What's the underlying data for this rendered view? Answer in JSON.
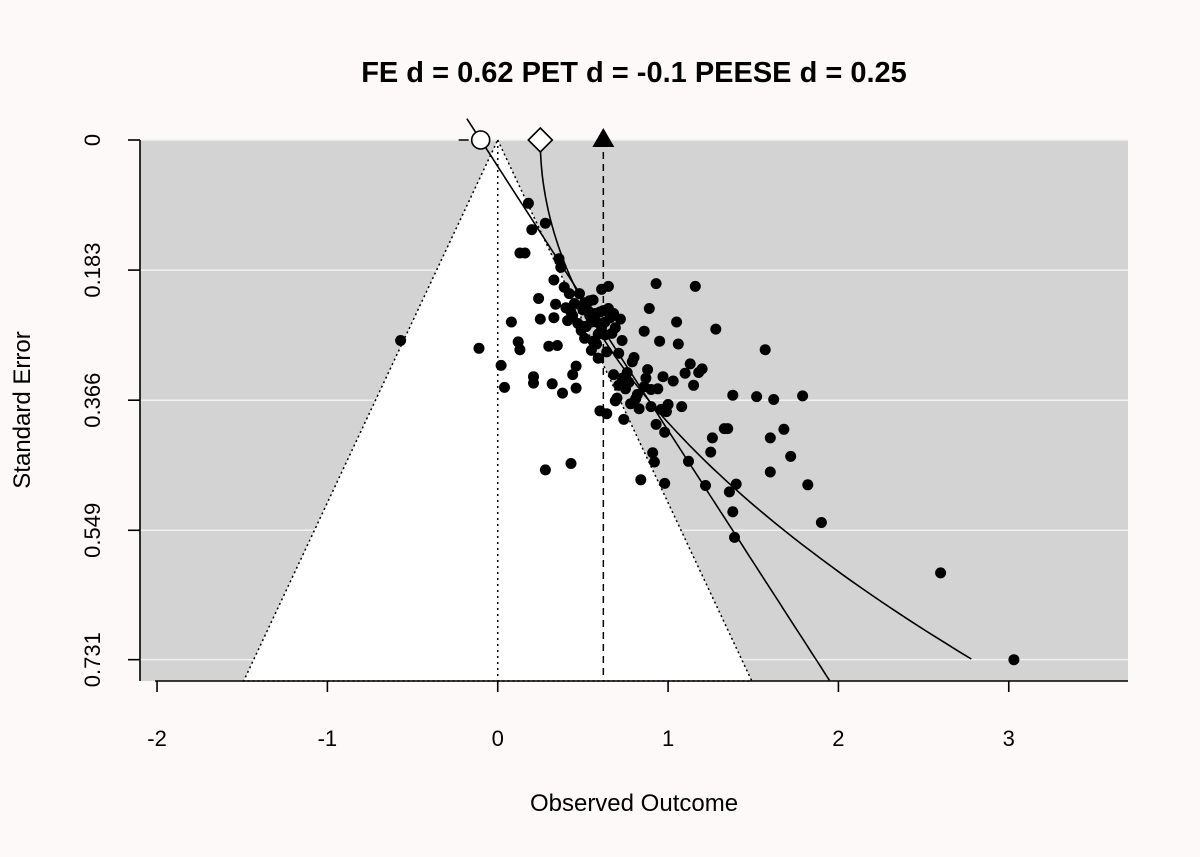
{
  "chart_data": {
    "type": "scatter",
    "title": "FE d = 0.62 PET d = -0.1 PEESE d = 0.25",
    "xlabel": "Observed Outcome",
    "ylabel": "Standard Error",
    "xlim": [
      -2.1,
      3.7
    ],
    "ylim": [
      0.761,
      0
    ],
    "x_ticks": [
      "-2",
      "-1",
      "0",
      "1",
      "2",
      "3"
    ],
    "x_tick_values": [
      -2,
      -1,
      0,
      1,
      2,
      3
    ],
    "y_ticks": [
      "0",
      "0.183",
      "0.366",
      "0.549",
      "0.731"
    ],
    "y_tick_values": [
      0,
      0.183,
      0.366,
      0.549,
      0.731
    ],
    "grid": true,
    "background": "#d3d3d3",
    "funnel_center": 0,
    "estimates": {
      "fe": 0.62,
      "pet": -0.1,
      "peese": 0.25
    },
    "points": [
      [
        -0.57,
        0.282
      ],
      [
        -0.11,
        0.293
      ],
      [
        0.02,
        0.317
      ],
      [
        0.04,
        0.348
      ],
      [
        0.08,
        0.256
      ],
      [
        0.12,
        0.284
      ],
      [
        0.13,
        0.295
      ],
      [
        0.13,
        0.159
      ],
      [
        0.16,
        0.159
      ],
      [
        0.18,
        0.089
      ],
      [
        0.2,
        0.126
      ],
      [
        0.21,
        0.333
      ],
      [
        0.21,
        0.342
      ],
      [
        0.24,
        0.223
      ],
      [
        0.25,
        0.252
      ],
      [
        0.28,
        0.117
      ],
      [
        0.28,
        0.464
      ],
      [
        0.3,
        0.29
      ],
      [
        0.32,
        0.343
      ],
      [
        0.33,
        0.197
      ],
      [
        0.33,
        0.25
      ],
      [
        0.34,
        0.231
      ],
      [
        0.35,
        0.289
      ],
      [
        0.36,
        0.167
      ],
      [
        0.37,
        0.179
      ],
      [
        0.38,
        0.356
      ],
      [
        0.39,
        0.207
      ],
      [
        0.4,
        0.236
      ],
      [
        0.41,
        0.254
      ],
      [
        0.42,
        0.216
      ],
      [
        0.43,
        0.242
      ],
      [
        0.43,
        0.455
      ],
      [
        0.44,
        0.33
      ],
      [
        0.44,
        0.247
      ],
      [
        0.45,
        0.23
      ],
      [
        0.46,
        0.318
      ],
      [
        0.46,
        0.349
      ],
      [
        0.47,
        0.258
      ],
      [
        0.48,
        0.216
      ],
      [
        0.49,
        0.268
      ],
      [
        0.5,
        0.239
      ],
      [
        0.51,
        0.229
      ],
      [
        0.51,
        0.279
      ],
      [
        0.52,
        0.262
      ],
      [
        0.53,
        0.24
      ],
      [
        0.54,
        0.247
      ],
      [
        0.54,
        0.226
      ],
      [
        0.55,
        0.256
      ],
      [
        0.55,
        0.296
      ],
      [
        0.56,
        0.225
      ],
      [
        0.56,
        0.283
      ],
      [
        0.57,
        0.244
      ],
      [
        0.58,
        0.256
      ],
      [
        0.58,
        0.287
      ],
      [
        0.59,
        0.307
      ],
      [
        0.59,
        0.273
      ],
      [
        0.6,
        0.381
      ],
      [
        0.6,
        0.242
      ],
      [
        0.61,
        0.263
      ],
      [
        0.61,
        0.21
      ],
      [
        0.62,
        0.24
      ],
      [
        0.63,
        0.256
      ],
      [
        0.63,
        0.274
      ],
      [
        0.64,
        0.298
      ],
      [
        0.64,
        0.385
      ],
      [
        0.65,
        0.237
      ],
      [
        0.65,
        0.206
      ],
      [
        0.66,
        0.25
      ],
      [
        0.67,
        0.272
      ],
      [
        0.68,
        0.244
      ],
      [
        0.68,
        0.33
      ],
      [
        0.69,
        0.264
      ],
      [
        0.69,
        0.367
      ],
      [
        0.7,
        0.363
      ],
      [
        0.71,
        0.345
      ],
      [
        0.71,
        0.3
      ],
      [
        0.72,
        0.252
      ],
      [
        0.73,
        0.335
      ],
      [
        0.73,
        0.282
      ],
      [
        0.74,
        0.393
      ],
      [
        0.75,
        0.35
      ],
      [
        0.76,
        0.327
      ],
      [
        0.77,
        0.341
      ],
      [
        0.78,
        0.371
      ],
      [
        0.79,
        0.312
      ],
      [
        0.8,
        0.306
      ],
      [
        0.81,
        0.364
      ],
      [
        0.82,
        0.358
      ],
      [
        0.83,
        0.378
      ],
      [
        0.84,
        0.478
      ],
      [
        0.86,
        0.347
      ],
      [
        0.86,
        0.269
      ],
      [
        0.87,
        0.335
      ],
      [
        0.88,
        0.323
      ],
      [
        0.89,
        0.237
      ],
      [
        0.9,
        0.351
      ],
      [
        0.9,
        0.375
      ],
      [
        0.91,
        0.44
      ],
      [
        0.92,
        0.453
      ],
      [
        0.93,
        0.202
      ],
      [
        0.93,
        0.4
      ],
      [
        0.94,
        0.35
      ],
      [
        0.95,
        0.283
      ],
      [
        0.96,
        0.379
      ],
      [
        0.97,
        0.333
      ],
      [
        0.98,
        0.411
      ],
      [
        0.98,
        0.483
      ],
      [
        0.99,
        0.382
      ],
      [
        1.0,
        0.372
      ],
      [
        1.03,
        0.339
      ],
      [
        1.05,
        0.256
      ],
      [
        1.06,
        0.287
      ],
      [
        1.08,
        0.375
      ],
      [
        1.1,
        0.328
      ],
      [
        1.12,
        0.452
      ],
      [
        1.13,
        0.315
      ],
      [
        1.15,
        0.345
      ],
      [
        1.16,
        0.206
      ],
      [
        1.18,
        0.327
      ],
      [
        1.2,
        0.322
      ],
      [
        1.22,
        0.486
      ],
      [
        1.25,
        0.439
      ],
      [
        1.26,
        0.419
      ],
      [
        1.28,
        0.266
      ],
      [
        1.33,
        0.406
      ],
      [
        1.35,
        0.406
      ],
      [
        1.36,
        0.495
      ],
      [
        1.38,
        0.359
      ],
      [
        1.38,
        0.523
      ],
      [
        1.39,
        0.559
      ],
      [
        1.4,
        0.484
      ],
      [
        1.52,
        0.361
      ],
      [
        1.57,
        0.295
      ],
      [
        1.6,
        0.419
      ],
      [
        1.6,
        0.467
      ],
      [
        1.62,
        0.365
      ],
      [
        1.68,
        0.407
      ],
      [
        1.72,
        0.445
      ],
      [
        1.79,
        0.36
      ],
      [
        1.82,
        0.485
      ],
      [
        1.9,
        0.538
      ],
      [
        2.6,
        0.609
      ],
      [
        3.03,
        0.731
      ]
    ]
  }
}
